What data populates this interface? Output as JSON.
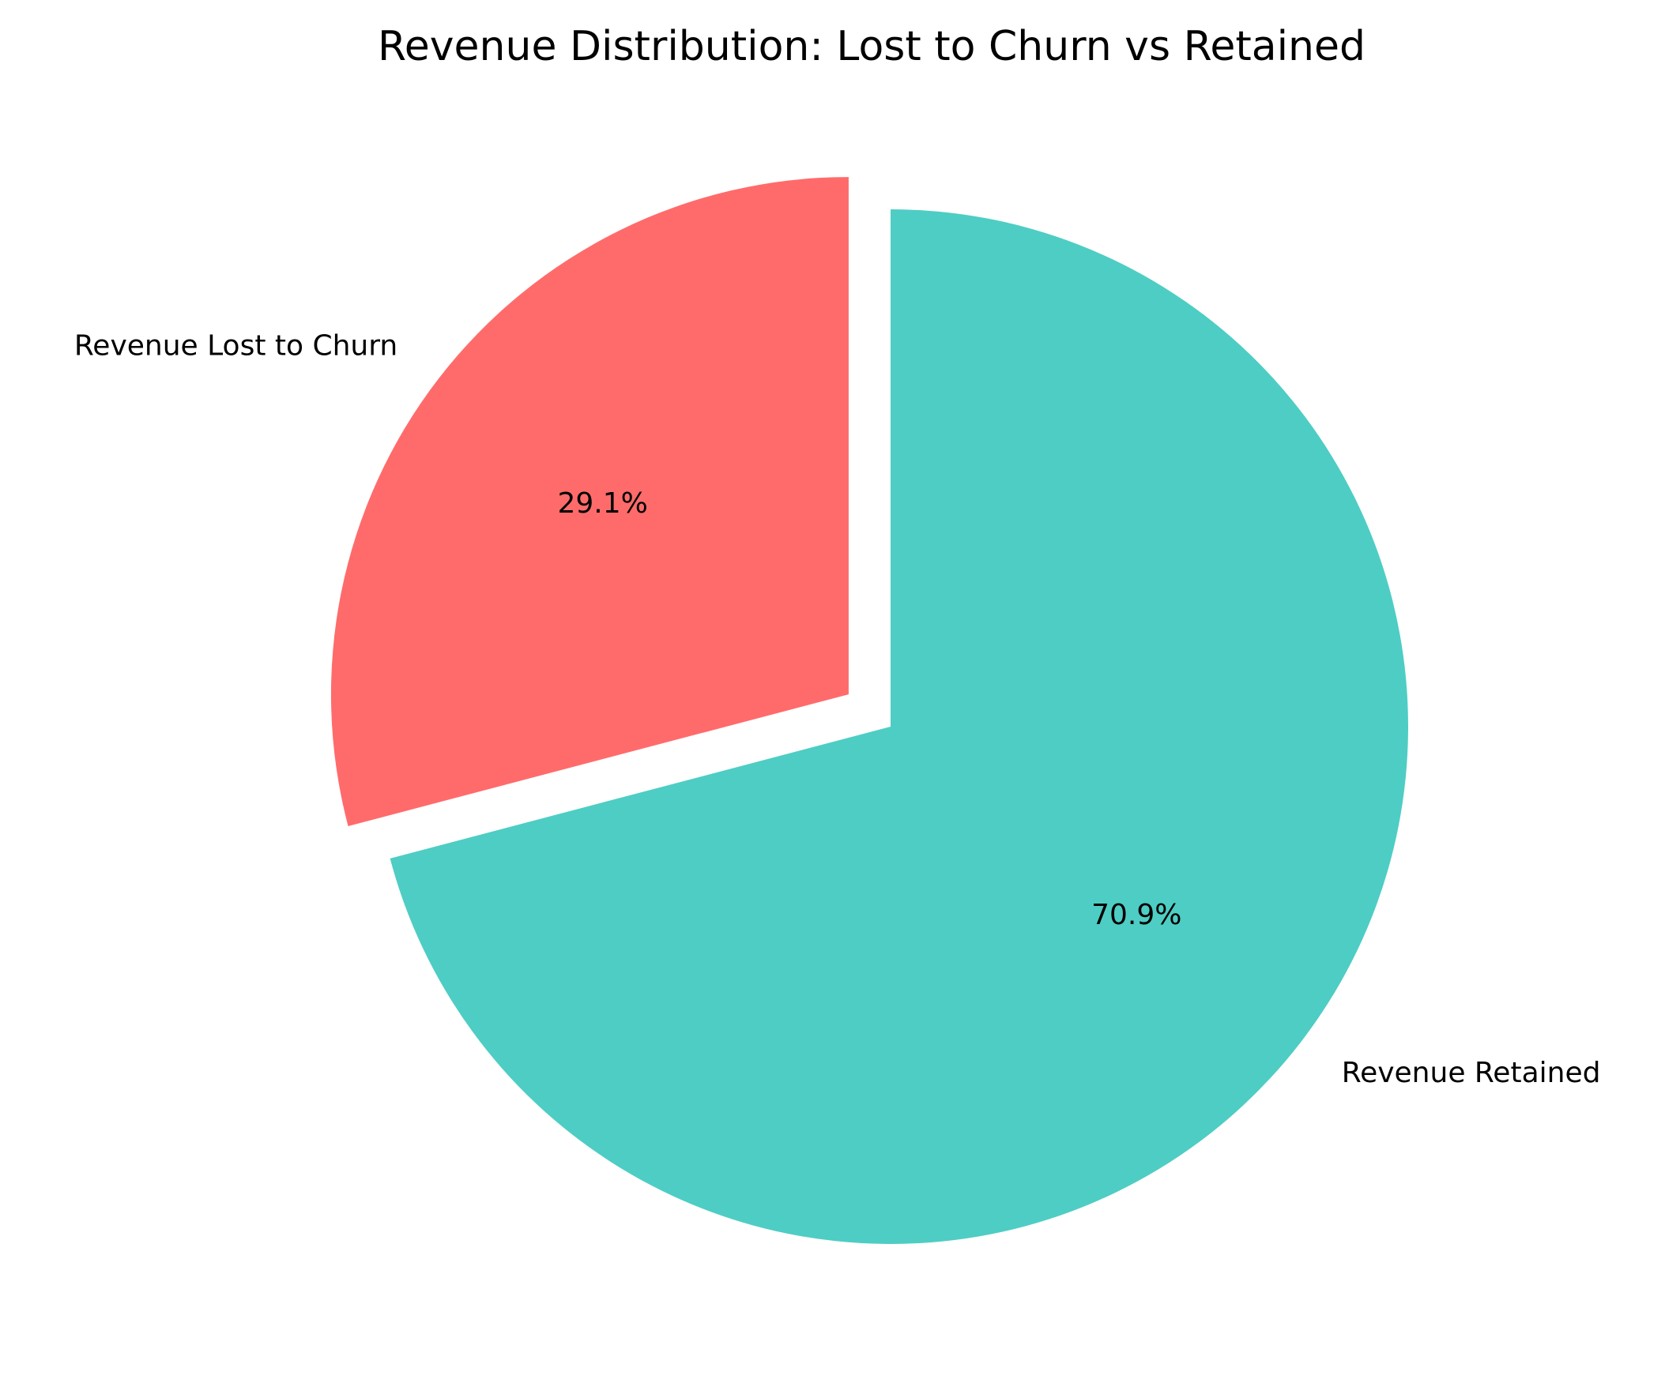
{
  "chart_data": {
    "type": "pie",
    "title": "Revenue Distribution: Lost to Churn vs Retained",
    "slices": [
      {
        "label": "Revenue Lost to Churn",
        "percent": 29.1,
        "percent_label": "29.1%",
        "color": "#ff6b6b",
        "exploded": true
      },
      {
        "label": "Revenue Retained",
        "percent": 70.9,
        "percent_label": "70.9%",
        "color": "#4ecdc4",
        "exploded": false
      }
    ],
    "start_angle": "top",
    "direction": "counterclockwise"
  }
}
